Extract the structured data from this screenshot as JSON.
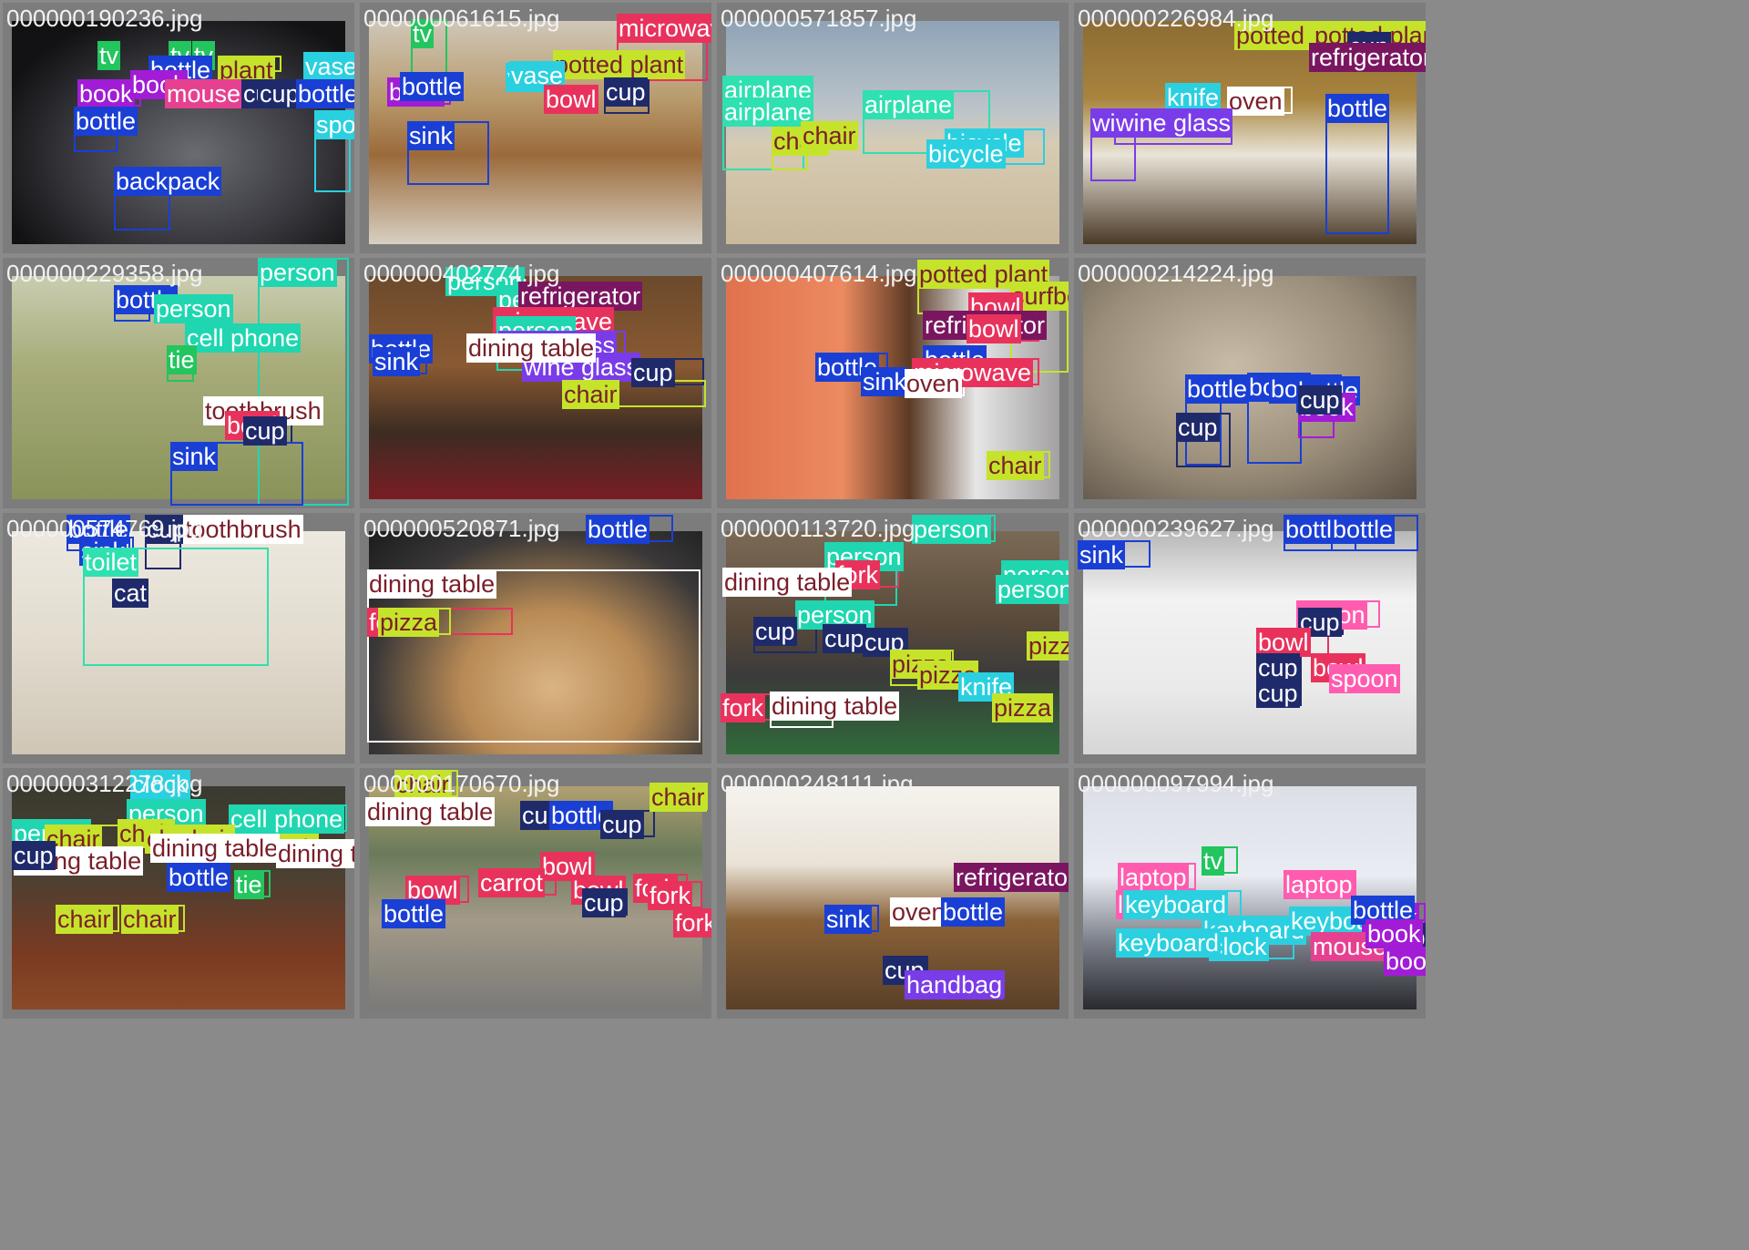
{
  "grid": {
    "columns": 4,
    "rows": 4
  },
  "tiles": [
    {
      "filename": "000000190236.jpg",
      "labels": [
        "tv",
        "tv",
        "tv",
        "bottle",
        "plant",
        "book",
        "book",
        "mouse",
        "cup",
        "cup",
        "bottle",
        "sports ball",
        "backpack",
        "vase",
        "bottle"
      ]
    },
    {
      "filename": "000000061615.jpg",
      "labels": [
        "tv",
        "microwave",
        "vase",
        "potted plant",
        "book",
        "bottle",
        "vase",
        "bowl",
        "cup",
        "sink"
      ]
    },
    {
      "filename": "000000571857.jpg",
      "labels": [
        "airplane",
        "airplane",
        "airplane",
        "chair",
        "chair",
        "bicycle",
        "bicycle"
      ]
    },
    {
      "filename": "000000226984.jpg",
      "labels": [
        "potted plant",
        "potted plant",
        "cup",
        "refrigerator",
        "knife",
        "oven",
        "bottle",
        "wine glass",
        "wine glass"
      ]
    },
    {
      "filename": "000000229358.jpg",
      "labels": [
        "person",
        "bottle",
        "person",
        "cell phone",
        "tie",
        "toothbrush",
        "bowl",
        "cup",
        "sink"
      ]
    },
    {
      "filename": "000000402774.jpg",
      "labels": [
        "person",
        "person",
        "refrigerator",
        "microwave",
        "person",
        "bottle",
        "sink",
        "wine glass",
        "wine glass",
        "cup",
        "chair",
        "dining table"
      ]
    },
    {
      "filename": "000000407614.jpg",
      "labels": [
        "potted plant",
        "surfboard",
        "bowl",
        "refrigerator",
        "bowl",
        "bottle",
        "bottle",
        "microwave",
        "sink",
        "oven",
        "chair"
      ]
    },
    {
      "filename": "000000214224.jpg",
      "labels": [
        "bottle",
        "bottle",
        "bottle",
        "bottle",
        "book",
        "cup",
        "cup"
      ]
    },
    {
      "filename": "000000574769.jpg",
      "labels": [
        "bottle",
        "sink",
        "cup",
        "toothbrush",
        "cat",
        "toilet"
      ]
    },
    {
      "filename": "000000520871.jpg",
      "labels": [
        "bottle",
        "dining table",
        "fork",
        "pizza"
      ]
    },
    {
      "filename": "000000113720.jpg",
      "labels": [
        "person",
        "person",
        "person",
        "fork",
        "dining table",
        "person",
        "person",
        "cup",
        "cup",
        "cup",
        "pizza",
        "pizza",
        "pizza",
        "fork",
        "dining table",
        "knife",
        "pizza"
      ]
    },
    {
      "filename": "000000239627.jpg",
      "labels": [
        "bottle",
        "bottle",
        "sink",
        "spoon",
        "cup",
        "bowl",
        "cup",
        "bowl",
        "spoon",
        "cup"
      ]
    },
    {
      "filename": "000000312278.jpg",
      "labels": [
        "clock",
        "person",
        "cell phone",
        "person",
        "chair",
        "chair",
        "chair",
        "chair",
        "chair",
        "dining table",
        "dining table",
        "dining table",
        "cup",
        "bottle",
        "tie",
        "chair",
        "chair"
      ]
    },
    {
      "filename": "000000170670.jpg",
      "labels": [
        "chair",
        "chair",
        "dining table",
        "cup",
        "bottle",
        "cup",
        "bowl",
        "bowl",
        "carrot",
        "bowl",
        "fork",
        "fork",
        "fork",
        "cup",
        "bottle"
      ]
    },
    {
      "filename": "000000248111.jpg",
      "labels": [
        "refrigerator",
        "sink",
        "oven",
        "bottle",
        "cup",
        "handbag"
      ]
    },
    {
      "filename": "000000097994.jpg",
      "labels": [
        "tv",
        "laptop",
        "laptop",
        "laptop",
        "keyboard",
        "keyboard",
        "keyboard",
        "clock",
        "keyboard",
        "mouse",
        "book",
        "bottle",
        "cup",
        "book",
        "book"
      ]
    }
  ],
  "class_colors": {
    "tv": "#22c55e",
    "bottle": "#1a3fd4",
    "book": "#a21cd6",
    "mouse": "#e64190",
    "cup": "#1f2a6b",
    "plant": "#c6e32b",
    "potted plant": "#c6e32b",
    "vase": "#2ad0e0",
    "sports ball": "#2ad0e0",
    "backpack": "#1a3fd4",
    "microwave": "#e8325c",
    "bowl": "#e8325c",
    "sink": "#1a3fd4",
    "airplane": "#2fe0b0",
    "chair": "#c6e32b",
    "bicycle": "#2ad0e0",
    "refrigerator": "#7a1660",
    "knife": "#2ad0e0",
    "oven": "#ffffff",
    "wine glass": "#7a3ce8",
    "person": "#1fd6b0",
    "cell phone": "#1fd6b0",
    "tie": "#22c55e",
    "toothbrush": "#ffffff",
    "dining table": "#ffffff",
    "surfboard": "#c6e32b",
    "cat": "#1f2a6b",
    "toilet": "#2fe0b0",
    "fork": "#e8325c",
    "pizza": "#c6e32b",
    "spoon": "#ff5cb0",
    "clock": "#2ad0e0",
    "carrot": "#e8325c",
    "handbag": "#7a3ce8",
    "laptop": "#ff5cb0",
    "keyboard": "#2ad0e0"
  }
}
